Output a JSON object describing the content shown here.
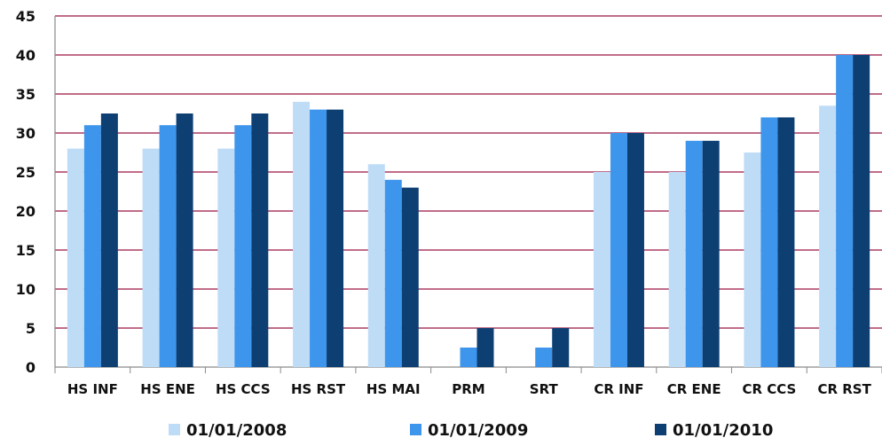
{
  "chart_data": {
    "type": "bar",
    "categories": [
      "HS INF",
      "HS ENE",
      "HS CCS",
      "HS RST",
      "HS MAI",
      "PRM",
      "SRT",
      "CR INF",
      "CR ENE",
      "CR CCS",
      "CR RST"
    ],
    "series": [
      {
        "name": "01/01/2008",
        "color": "#bfdcf7",
        "values": [
          28,
          28,
          28,
          34,
          26,
          0,
          0,
          25,
          25,
          27.5,
          33.5
        ]
      },
      {
        "name": "01/01/2009",
        "color": "#3d95ec",
        "values": [
          31,
          31,
          31,
          33,
          24,
          2.5,
          2.5,
          30,
          29,
          32,
          40
        ]
      },
      {
        "name": "01/01/2010",
        "color": "#0d3f73",
        "values": [
          32.5,
          32.5,
          32.5,
          33,
          23,
          5,
          5,
          30,
          29,
          32,
          40
        ]
      }
    ],
    "yticks": [
      "0",
      "5",
      "10",
      "15",
      "20",
      "25",
      "30",
      "35",
      "40",
      "45"
    ],
    "ylim": [
      0,
      45
    ],
    "grid": true,
    "grid_color": "#9a1640",
    "legend_position": "bottom"
  }
}
